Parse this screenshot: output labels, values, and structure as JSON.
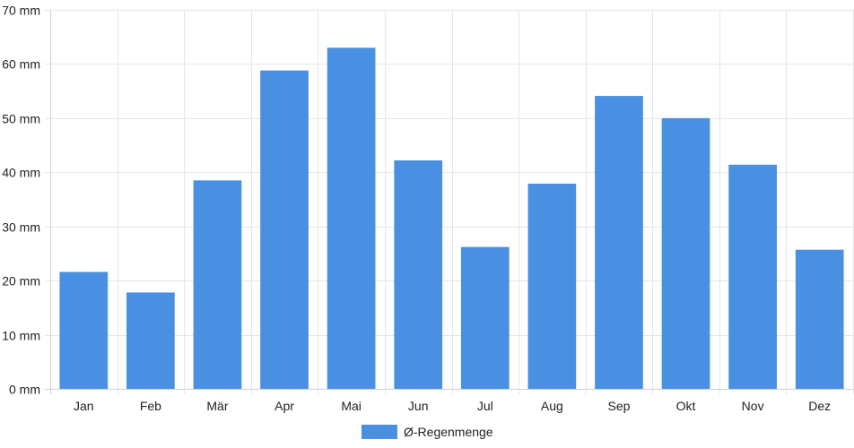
{
  "colors": {
    "bar": "#4a90e2",
    "grid": "#e6e6e6",
    "axis": "#d0d0d0",
    "text": "#222222"
  },
  "chart_data": {
    "type": "bar",
    "categories": [
      "Jan",
      "Feb",
      "Mär",
      "Apr",
      "Mai",
      "Jun",
      "Jul",
      "Aug",
      "Sep",
      "Okt",
      "Nov",
      "Dez"
    ],
    "series": [
      {
        "name": "Ø-Regenmenge",
        "values": [
          21.6,
          17.8,
          38.5,
          58.8,
          63.0,
          42.2,
          26.2,
          37.9,
          54.1,
          50.0,
          41.4,
          25.7
        ]
      }
    ],
    "y_unit": "mm",
    "ylim": [
      0,
      70
    ],
    "yticks": [
      0,
      10,
      20,
      30,
      40,
      50,
      60,
      70
    ],
    "grid": true,
    "legend_position": "bottom-center"
  }
}
